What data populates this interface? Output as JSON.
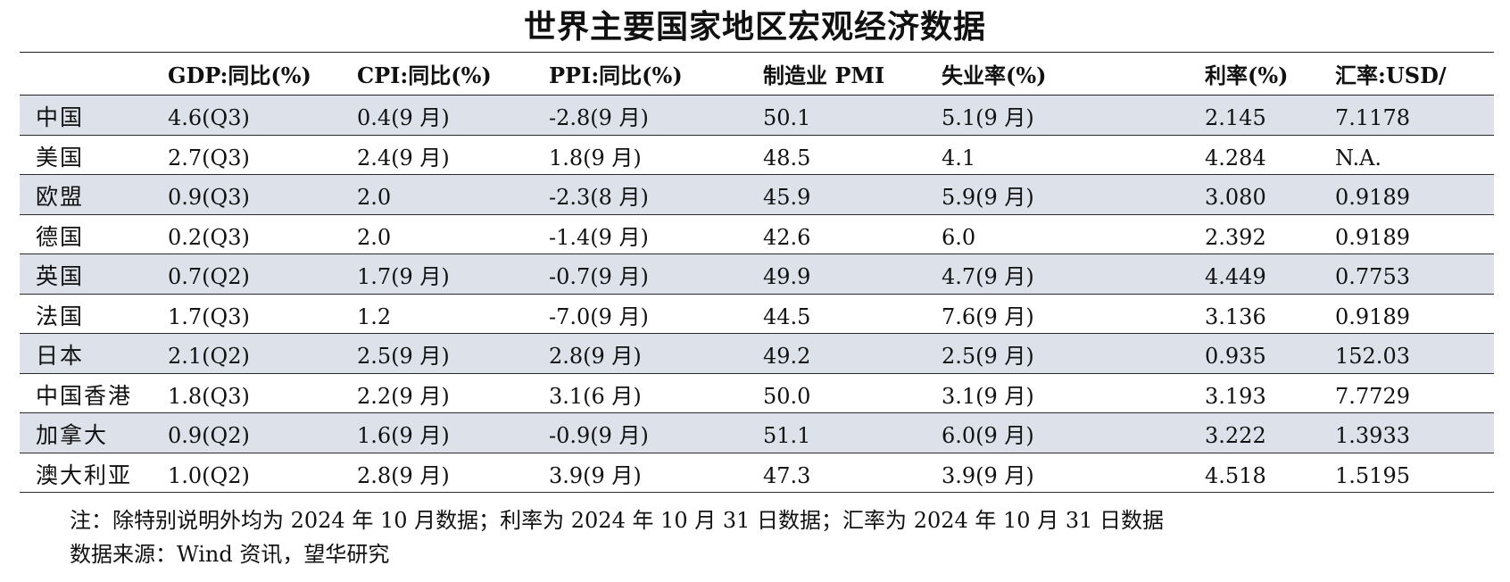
{
  "title": "世界主要国家地区宏观经济数据",
  "columns": [
    "",
    "GDP:同比(%)",
    "CPI:同比(%)",
    "PPI:同比(%)",
    "制造业 PMI",
    "失业率(%)",
    "利率(%)",
    "汇率:USD/"
  ],
  "rows": [
    [
      "中国",
      "4.6(Q3)",
      "0.4(9 月)",
      "-2.8(9 月)",
      "50.1",
      "5.1(9 月)",
      "2.145",
      "7.1178"
    ],
    [
      "美国",
      "2.7(Q3)",
      "2.4(9 月)",
      "1.8(9 月)",
      "48.5",
      "4.1",
      "4.284",
      "N.A."
    ],
    [
      "欧盟",
      "0.9(Q3)",
      "2.0",
      "-2.3(8 月)",
      "45.9",
      "5.9(9 月)",
      "3.080",
      "0.9189"
    ],
    [
      "德国",
      "0.2(Q3)",
      "2.0",
      "-1.4(9 月)",
      "42.6",
      "6.0",
      "2.392",
      "0.9189"
    ],
    [
      "英国",
      "0.7(Q2)",
      "1.7(9 月)",
      "-0.7(9 月)",
      "49.9",
      "4.7(9 月)",
      "4.449",
      "0.7753"
    ],
    [
      "法国",
      "1.7(Q3)",
      "1.2",
      "-7.0(9 月)",
      "44.5",
      "7.6(9 月)",
      "3.136",
      "0.9189"
    ],
    [
      "日本",
      "2.1(Q2)",
      "2.5(9 月)",
      "2.8(9 月)",
      "49.2",
      "2.5(9 月)",
      "0.935",
      "152.03"
    ],
    [
      "中国香港",
      "1.8(Q3)",
      "2.2(9 月)",
      "3.1(6 月)",
      "50.0",
      "3.1(9 月)",
      "3.193",
      "7.7729"
    ],
    [
      "加拿大",
      "0.9(Q2)",
      "1.6(9 月)",
      "-0.9(9 月)",
      "51.1",
      "6.0(9 月)",
      "3.222",
      "1.3933"
    ],
    [
      "澳大利亚",
      "1.0(Q2)",
      "2.8(9 月)",
      "3.9(9 月)",
      "47.3",
      "3.9(9 月)",
      "4.518",
      "1.5195"
    ]
  ],
  "note": "注：除特别说明外均为 2024 年 10 月数据；利率为 2024 年 10 月 31 日数据；汇率为 2024 年 10 月 31 日数据",
  "source": "数据来源：Wind 资讯，望华研究",
  "colors": {
    "shaded_row": "#dde2ea",
    "rule": "#222222",
    "text": "#111111"
  }
}
